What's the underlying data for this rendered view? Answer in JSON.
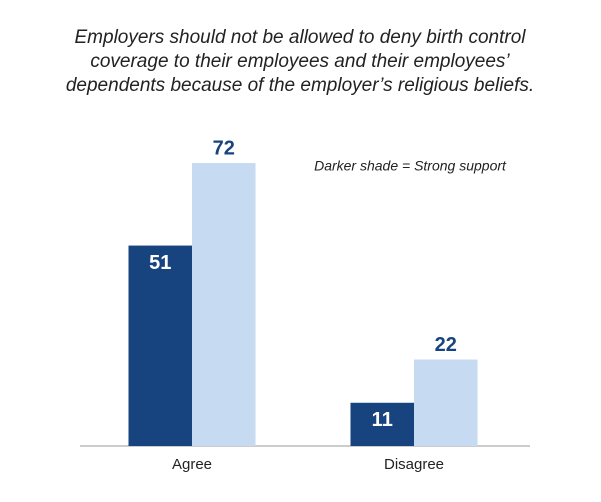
{
  "chart_data": {
    "type": "bar",
    "title": [
      "Employers should not be allowed to deny birth control",
      "coverage to their employees and their employees’",
      "dependents because of the employer’s religious beliefs."
    ],
    "annotation": "Darker shade = Strong support",
    "categories": [
      "Agree",
      "Disagree"
    ],
    "series": [
      {
        "color": "#17437e",
        "values": [
          51,
          11
        ]
      },
      {
        "color": "#c6daf2",
        "values": [
          72,
          22
        ]
      }
    ],
    "ylim": [
      0,
      80
    ]
  }
}
